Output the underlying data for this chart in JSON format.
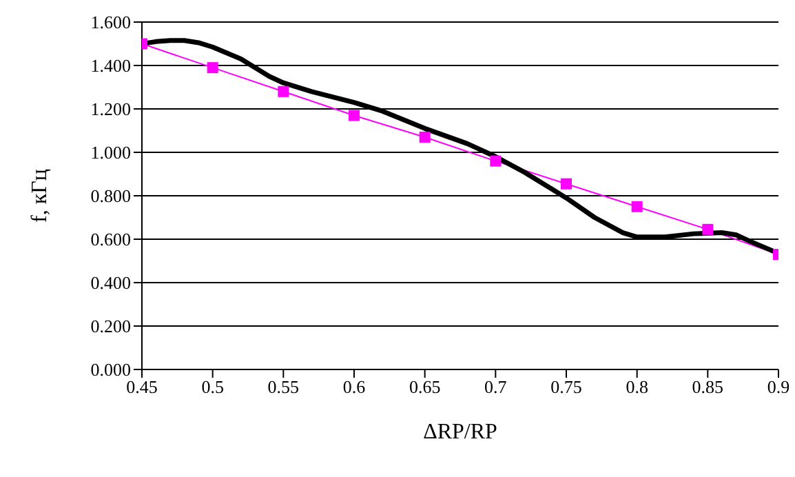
{
  "chart_data": {
    "type": "line",
    "xlabel": "ΔRP/RP",
    "ylabel": "f, кГц",
    "xlim": [
      0.45,
      0.9
    ],
    "xticks": [
      0.45,
      0.5,
      0.55,
      0.6,
      0.65,
      0.7,
      0.75,
      0.8,
      0.85,
      0.9
    ],
    "ylim": [
      0,
      1.6
    ],
    "yticks": [
      {
        "value": 0,
        "label": "0.000"
      },
      {
        "value": 0.2,
        "label": "0.200"
      },
      {
        "value": 0.4,
        "label": "0.400"
      },
      {
        "value": 0.6,
        "label": "0.600"
      },
      {
        "value": 0.8,
        "label": "0.800"
      },
      {
        "value": 1,
        "label": "1.000"
      },
      {
        "value": 1.2,
        "label": "1.200"
      },
      {
        "value": 1.4,
        "label": "1.400"
      },
      {
        "value": 1.6,
        "label": "1.600"
      }
    ],
    "grid": "y",
    "series": [
      {
        "color": "#ff00ff",
        "marker": "square",
        "x": [
          0.45,
          0.5,
          0.55,
          0.6,
          0.65,
          0.7,
          0.75,
          0.8,
          0.85,
          0.9
        ],
        "values": [
          1.5,
          1.39,
          1.28,
          1.17,
          1.07,
          0.96,
          0.855,
          0.75,
          0.645,
          0.53
        ]
      },
      {
        "color": "#000000",
        "marker": "none",
        "x": [
          0.45,
          0.46,
          0.47,
          0.48,
          0.49,
          0.5,
          0.52,
          0.54,
          0.55,
          0.57,
          0.6,
          0.62,
          0.65,
          0.68,
          0.7,
          0.72,
          0.74,
          0.75,
          0.77,
          0.79,
          0.8,
          0.82,
          0.84,
          0.86,
          0.87,
          0.88,
          0.9
        ],
        "values": [
          1.5,
          1.51,
          1.515,
          1.515,
          1.505,
          1.485,
          1.43,
          1.35,
          1.32,
          1.28,
          1.23,
          1.19,
          1.11,
          1.04,
          0.98,
          0.91,
          0.83,
          0.79,
          0.7,
          0.63,
          0.61,
          0.61,
          0.625,
          0.63,
          0.62,
          0.59,
          0.535
        ]
      }
    ]
  }
}
